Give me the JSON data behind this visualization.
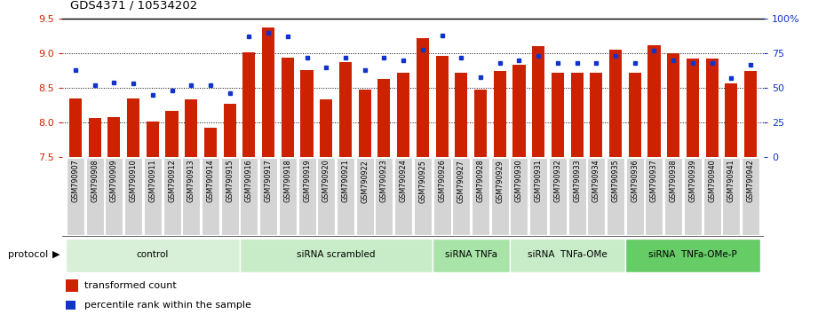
{
  "title": "GDS4371 / 10534202",
  "samples": [
    "GSM790907",
    "GSM790908",
    "GSM790909",
    "GSM790910",
    "GSM790911",
    "GSM790912",
    "GSM790913",
    "GSM790914",
    "GSM790915",
    "GSM790916",
    "GSM790917",
    "GSM790918",
    "GSM790919",
    "GSM790920",
    "GSM790921",
    "GSM790922",
    "GSM790923",
    "GSM790924",
    "GSM790925",
    "GSM790926",
    "GSM790927",
    "GSM790928",
    "GSM790929",
    "GSM790930",
    "GSM790931",
    "GSM790932",
    "GSM790933",
    "GSM790934",
    "GSM790935",
    "GSM790936",
    "GSM790937",
    "GSM790938",
    "GSM790939",
    "GSM790940",
    "GSM790941",
    "GSM790942"
  ],
  "bar_values": [
    8.35,
    8.07,
    8.08,
    8.35,
    8.02,
    8.17,
    8.33,
    7.93,
    8.27,
    9.01,
    9.37,
    8.94,
    8.76,
    8.33,
    8.87,
    8.47,
    8.63,
    8.72,
    9.22,
    8.96,
    8.72,
    8.48,
    8.75,
    8.84,
    9.1,
    8.72,
    8.72,
    8.72,
    9.05,
    8.72,
    9.12,
    9.0,
    8.93,
    8.92,
    8.57,
    8.75
  ],
  "percentile_values": [
    63,
    52,
    54,
    53,
    45,
    48,
    52,
    52,
    46,
    87,
    90,
    87,
    72,
    65,
    72,
    63,
    72,
    70,
    78,
    88,
    72,
    58,
    68,
    70,
    73,
    68,
    68,
    68,
    73,
    68,
    77,
    70,
    68,
    68,
    57,
    67
  ],
  "groups": [
    {
      "label": "control",
      "start": 0,
      "end": 9,
      "color": "#d8f0d8"
    },
    {
      "label": "siRNA scrambled",
      "start": 9,
      "end": 19,
      "color": "#c8ecc8"
    },
    {
      "label": "siRNA TNFa",
      "start": 19,
      "end": 23,
      "color": "#a8e4a8"
    },
    {
      "label": "siRNA  TNFa-OMe",
      "start": 23,
      "end": 29,
      "color": "#c8ecc8"
    },
    {
      "label": "siRNA  TNFa-OMe-P",
      "start": 29,
      "end": 36,
      "color": "#66cc66"
    }
  ],
  "ylim_left": [
    7.5,
    9.5
  ],
  "ylim_right": [
    0,
    100
  ],
  "bar_color": "#cc2200",
  "dot_color": "#1133cc",
  "ylabel_left_color": "#cc2200",
  "ylabel_right_color": "#1133cc",
  "yticks_left": [
    7.5,
    8.0,
    8.5,
    9.0,
    9.5
  ],
  "yticks_right": [
    0,
    25,
    50,
    75,
    100
  ],
  "ytick_labels_right": [
    "0",
    "25",
    "50",
    "75",
    "100%"
  ],
  "grid_yticks": [
    8.0,
    8.5,
    9.0
  ]
}
